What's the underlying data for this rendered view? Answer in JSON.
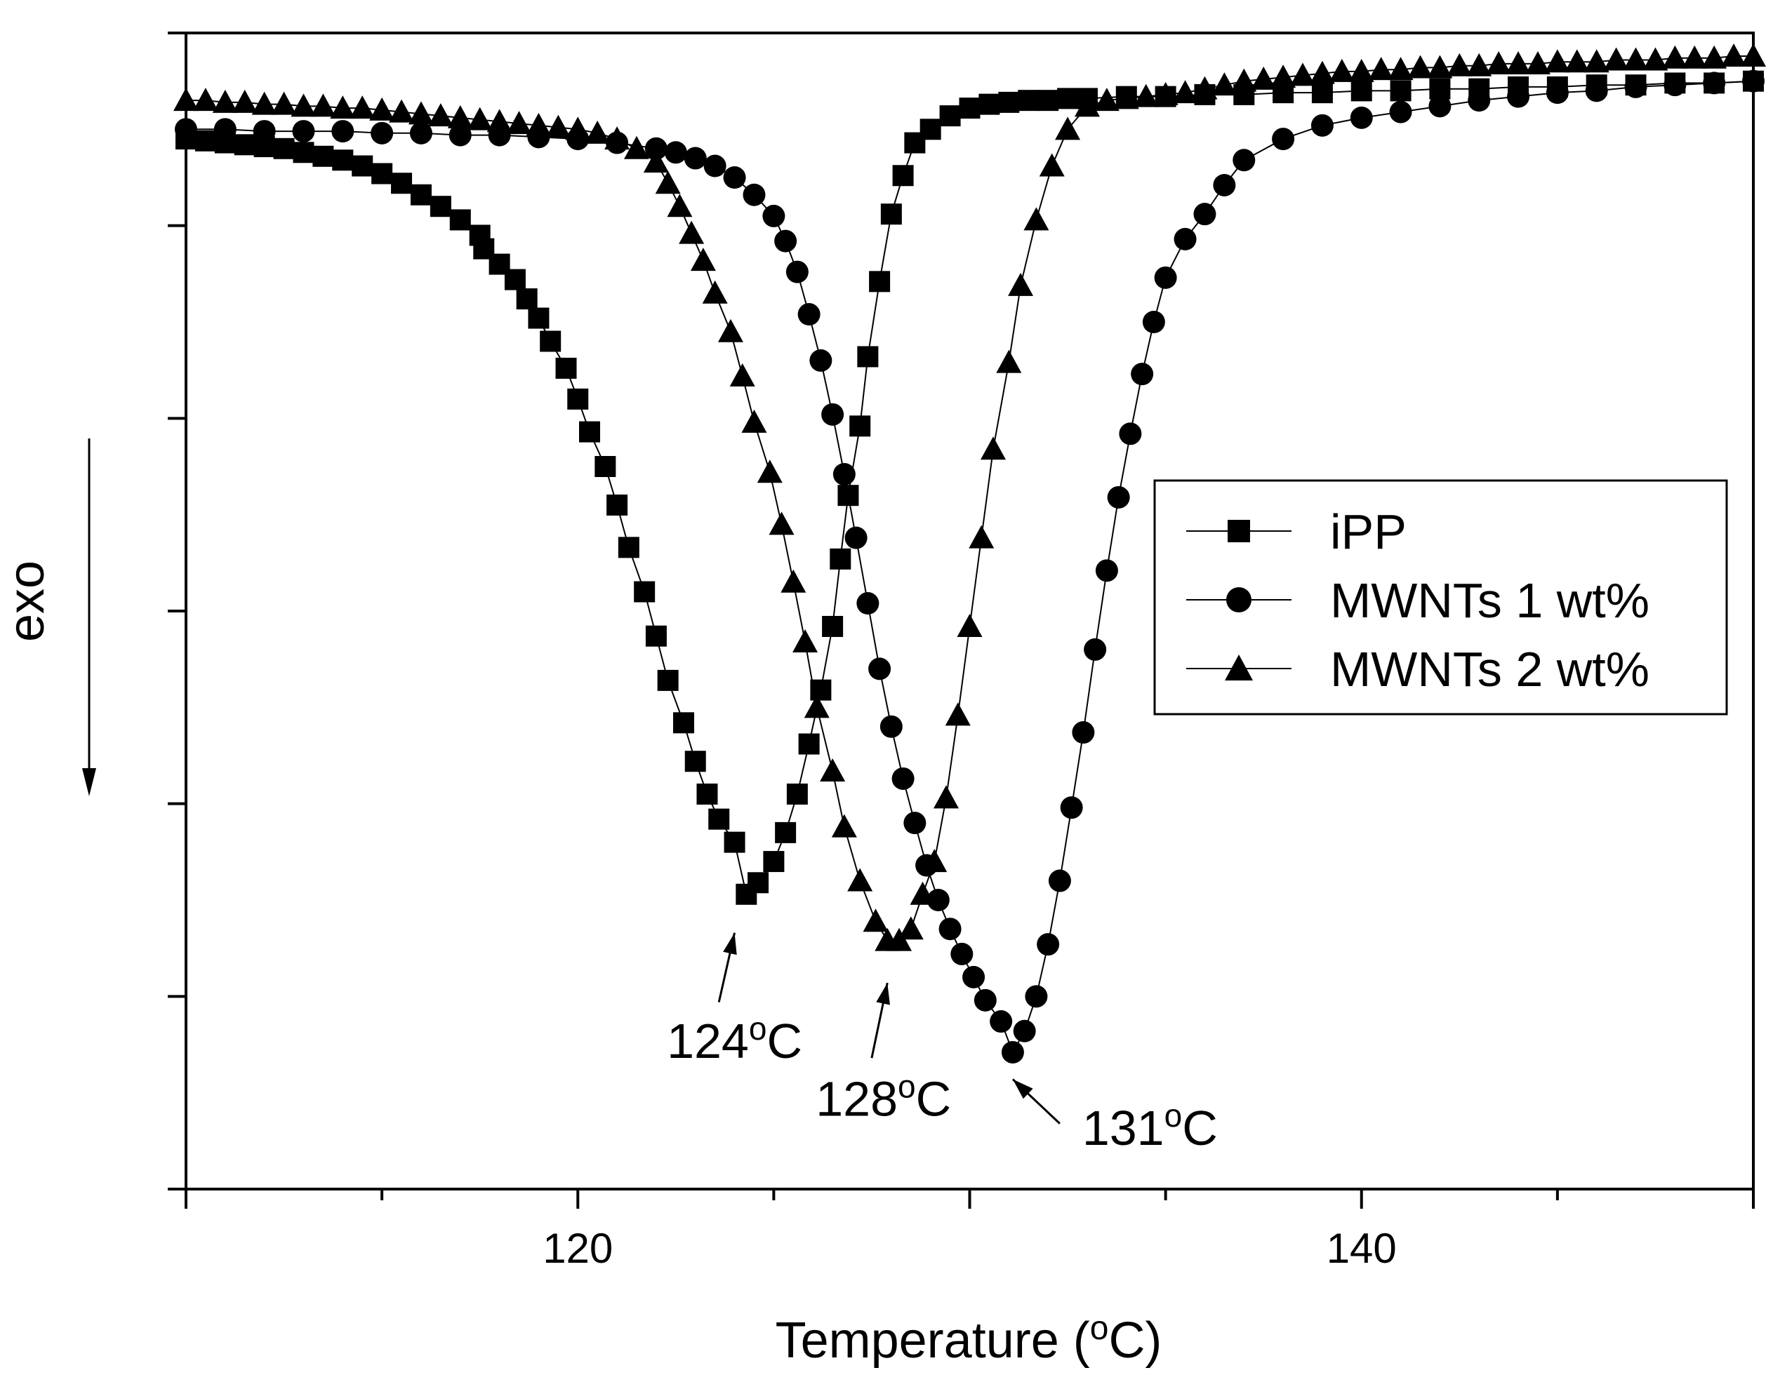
{
  "chart_data": {
    "type": "scatter",
    "title": "",
    "xlabel": "Temperature (°C)",
    "ylabel": "exo",
    "xlim": [
      110,
      150
    ],
    "ylim": [
      0,
      6
    ],
    "x_ticks": [
      120,
      140
    ],
    "x_tick_labels": [
      "120",
      "140"
    ],
    "y_ticks": [
      0,
      1,
      2,
      3,
      4,
      5,
      6
    ],
    "y_tick_labels_shown": false,
    "grid": false,
    "legend_position": "center-right",
    "series": [
      {
        "name": "iPP",
        "marker": "square",
        "color": "#000000",
        "x": [
          110.0,
          110.5,
          111.0,
          111.5,
          112.0,
          112.5,
          113.0,
          113.5,
          114.0,
          114.5,
          115.0,
          115.5,
          116.0,
          116.5,
          117.0,
          117.5,
          117.6,
          118.0,
          118.4,
          118.7,
          119.0,
          119.3,
          119.7,
          120.0,
          120.3,
          120.7,
          121.0,
          121.3,
          121.7,
          122.0,
          122.3,
          122.7,
          123.0,
          123.3,
          123.6,
          124.0,
          124.3,
          124.6,
          125.0,
          125.3,
          125.6,
          125.9,
          126.2,
          126.5,
          126.7,
          126.9,
          127.2,
          127.4,
          127.7,
          128.0,
          128.3,
          128.6,
          129.0,
          129.5,
          130.0,
          130.5,
          131.0,
          131.5,
          132.0,
          132.5,
          133.0,
          134.0,
          135.0,
          136.0,
          137.0,
          138.0,
          139.0,
          140.0,
          141.0,
          142.0,
          143.0,
          144.0,
          145.0,
          146.0,
          147.0,
          148.0,
          149.0,
          150.0
        ],
        "y": [
          5.45,
          5.44,
          5.43,
          5.42,
          5.41,
          5.4,
          5.38,
          5.36,
          5.34,
          5.31,
          5.27,
          5.22,
          5.16,
          5.1,
          5.03,
          4.95,
          4.88,
          4.8,
          4.72,
          4.62,
          4.52,
          4.4,
          4.26,
          4.1,
          3.93,
          3.75,
          3.55,
          3.33,
          3.1,
          2.87,
          2.64,
          2.42,
          2.22,
          2.05,
          1.92,
          1.8,
          1.53,
          1.59,
          1.7,
          1.85,
          2.05,
          2.31,
          2.59,
          2.92,
          3.27,
          3.6,
          3.96,
          4.32,
          4.71,
          5.06,
          5.26,
          5.43,
          5.5,
          5.57,
          5.61,
          5.63,
          5.64,
          5.65,
          5.65,
          5.66,
          5.66,
          5.67,
          5.67,
          5.68,
          5.68,
          5.69,
          5.69,
          5.7,
          5.7,
          5.71,
          5.71,
          5.72,
          5.72,
          5.73,
          5.73,
          5.74,
          5.74,
          5.75
        ]
      },
      {
        "name": "MWNTs 1 wt%",
        "marker": "circle",
        "color": "#000000",
        "x": [
          110.0,
          111.0,
          112.0,
          113.0,
          114.0,
          115.0,
          116.0,
          117.0,
          118.0,
          119.0,
          120.0,
          121.0,
          122.0,
          122.5,
          123.0,
          123.5,
          124.0,
          124.5,
          125.0,
          125.3,
          125.6,
          125.9,
          126.2,
          126.5,
          126.8,
          127.1,
          127.4,
          127.7,
          128.0,
          128.3,
          128.6,
          128.9,
          129.2,
          129.5,
          129.8,
          130.1,
          130.4,
          130.8,
          131.1,
          131.4,
          131.7,
          132.0,
          132.3,
          132.6,
          132.9,
          133.2,
          133.5,
          133.8,
          134.1,
          134.4,
          134.7,
          135.0,
          135.5,
          136.0,
          136.5,
          137.0,
          138.0,
          139.0,
          140.0,
          141.0,
          142.0,
          143.0,
          144.0,
          145.0,
          146.0,
          147.0,
          148.0,
          149.0,
          150.0
        ],
        "y": [
          5.5,
          5.5,
          5.49,
          5.49,
          5.49,
          5.48,
          5.48,
          5.47,
          5.47,
          5.46,
          5.45,
          5.43,
          5.4,
          5.38,
          5.35,
          5.31,
          5.25,
          5.16,
          5.05,
          4.92,
          4.76,
          4.54,
          4.3,
          4.02,
          3.71,
          3.38,
          3.04,
          2.7,
          2.4,
          2.13,
          1.9,
          1.68,
          1.5,
          1.35,
          1.22,
          1.1,
          0.98,
          0.87,
          0.71,
          0.82,
          1.0,
          1.27,
          1.6,
          1.98,
          2.37,
          2.8,
          3.21,
          3.59,
          3.92,
          4.23,
          4.5,
          4.73,
          4.93,
          5.06,
          5.21,
          5.34,
          5.45,
          5.52,
          5.56,
          5.59,
          5.62,
          5.65,
          5.67,
          5.69,
          5.7,
          5.72,
          5.73,
          5.74,
          5.75
        ]
      },
      {
        "name": "MWNTs 2 wt%",
        "marker": "triangle",
        "color": "#000000",
        "x": [
          110.0,
          110.5,
          111.0,
          111.5,
          112.0,
          112.5,
          113.0,
          113.5,
          114.0,
          114.5,
          115.0,
          115.5,
          116.0,
          116.5,
          117.0,
          117.5,
          118.0,
          118.5,
          119.0,
          119.5,
          120.0,
          120.5,
          121.0,
          121.5,
          122.0,
          122.3,
          122.6,
          122.9,
          123.2,
          123.5,
          123.9,
          124.2,
          124.5,
          124.9,
          125.2,
          125.5,
          125.8,
          126.1,
          126.5,
          126.8,
          127.2,
          127.6,
          127.9,
          128.2,
          128.5,
          128.8,
          129.1,
          129.4,
          129.7,
          130.0,
          130.3,
          130.6,
          131.0,
          131.3,
          131.7,
          132.1,
          132.5,
          133.0,
          133.5,
          134.0,
          134.5,
          135.0,
          135.5,
          136.0,
          136.5,
          137.0,
          137.5,
          138.0,
          138.5,
          139.0,
          139.5,
          140.0,
          140.5,
          141.0,
          141.5,
          142.0,
          142.5,
          143.0,
          143.5,
          144.0,
          144.5,
          145.0,
          145.5,
          146.0,
          146.5,
          147.0,
          147.5,
          148.0,
          148.5,
          149.0,
          149.5,
          150.0
        ],
        "y": [
          5.65,
          5.65,
          5.64,
          5.64,
          5.63,
          5.63,
          5.62,
          5.62,
          5.61,
          5.61,
          5.6,
          5.59,
          5.58,
          5.57,
          5.56,
          5.55,
          5.54,
          5.53,
          5.52,
          5.51,
          5.5,
          5.48,
          5.45,
          5.4,
          5.33,
          5.22,
          5.1,
          4.96,
          4.82,
          4.65,
          4.45,
          4.22,
          3.98,
          3.72,
          3.45,
          3.15,
          2.84,
          2.5,
          2.17,
          1.88,
          1.6,
          1.39,
          1.29,
          1.29,
          1.35,
          1.53,
          1.7,
          2.03,
          2.46,
          2.92,
          3.38,
          3.84,
          4.29,
          4.69,
          5.03,
          5.31,
          5.5,
          5.62,
          5.65,
          5.66,
          5.67,
          5.68,
          5.69,
          5.71,
          5.73,
          5.75,
          5.76,
          5.77,
          5.78,
          5.79,
          5.8,
          5.8,
          5.81,
          5.81,
          5.82,
          5.82,
          5.83,
          5.83,
          5.84,
          5.84,
          5.84,
          5.85,
          5.85,
          5.85,
          5.86,
          5.86,
          5.86,
          5.87,
          5.87,
          5.87,
          5.88,
          5.88
        ]
      }
    ],
    "annotations": [
      {
        "label": "124°C",
        "value": "124",
        "unit": "C",
        "degree": "o",
        "label_x": 124.0,
        "label_y": 0.68,
        "tip_x": 124.0,
        "tip_y": 1.33,
        "tail_x": 123.6,
        "tail_y": 0.97
      },
      {
        "label": "128°C",
        "value": "128",
        "unit": "C",
        "degree": "o",
        "label_x": 127.8,
        "label_y": 0.38,
        "tip_x": 127.9,
        "tip_y": 1.07,
        "tail_x": 127.5,
        "tail_y": 0.68
      },
      {
        "label": "131°C",
        "value": "131",
        "unit": "C",
        "degree": "o",
        "label_x": 134.6,
        "label_y": 0.23,
        "tip_x": 131.1,
        "tip_y": 0.57,
        "tail_x": 132.3,
        "tail_y": 0.34
      }
    ]
  },
  "axis_title": {
    "x": {
      "text": "Temperature (",
      "degree": "o",
      "unit": "C)"
    },
    "y": "exo"
  },
  "legend": {
    "entries": [
      "iPP",
      "MWNTs 1 wt%",
      "MWNTs 2 wt%"
    ]
  }
}
